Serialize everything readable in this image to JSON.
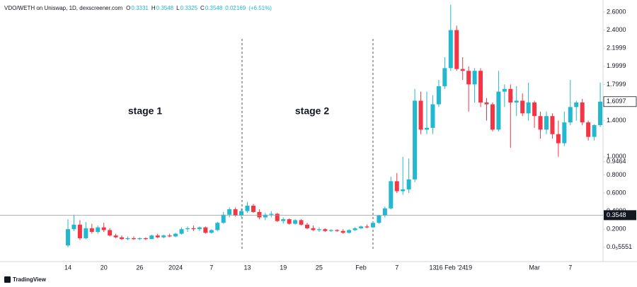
{
  "watermark": "TradingView",
  "chart_data": {
    "type": "candlestick",
    "title": "VDO/WETH on Uniswap, 1D, dexscreener.com",
    "readout": [
      {
        "name": "O",
        "value": 0.3331
      },
      {
        "name": "H",
        "value": 0.3548
      },
      {
        "name": "L",
        "value": 0.3325
      },
      {
        "name": "C",
        "value": 0.3548
      }
    ],
    "change": 0.02169,
    "change_pct": {
      "value": 6.51,
      "label": "(+6.51%)"
    },
    "annotations": [
      "stage 1",
      "stage 2"
    ],
    "up_color": "#22b8cf",
    "down_color": "#f23645",
    "categories": [
      "14",
      null,
      null,
      null,
      null,
      null,
      "20",
      null,
      null,
      null,
      null,
      null,
      "26",
      null,
      null,
      null,
      null,
      null,
      "2024",
      null,
      null,
      null,
      null,
      null,
      "7",
      null,
      null,
      null,
      null,
      null,
      "13",
      null,
      null,
      null,
      null,
      null,
      "19",
      null,
      null,
      null,
      null,
      null,
      "25",
      null,
      null,
      null,
      null,
      null,
      null,
      "Feb",
      null,
      null,
      null,
      null,
      null,
      "7",
      null,
      null,
      null,
      null,
      null,
      "13",
      null,
      null,
      "16 Feb '24",
      null,
      null,
      "19",
      null,
      null,
      null,
      null,
      null,
      null,
      null,
      null,
      null,
      null,
      "Mar",
      null,
      null,
      null,
      null,
      null,
      "7",
      null,
      null,
      null,
      null,
      null
    ],
    "series": [
      {
        "name": "VDO/WETH",
        "open": [
          0.02,
          0.2,
          0.25,
          0.1,
          0.21,
          0.17,
          0.22,
          0.19,
          0.13,
          0.11,
          0.09,
          0.1,
          0.09,
          0.1,
          0.09,
          0.13,
          0.11,
          0.13,
          0.12,
          0.15,
          0.2,
          0.21,
          0.2,
          0.22,
          0.16,
          0.19,
          0.27,
          0.36,
          0.42,
          0.35,
          0.4,
          0.46,
          0.39,
          0.33,
          0.36,
          0.37,
          0.29,
          0.31,
          0.26,
          0.3,
          0.25,
          0.21,
          0.19,
          0.2,
          0.18,
          0.19,
          0.18,
          0.16,
          0.19,
          0.21,
          0.23,
          0.22,
          0.27,
          0.35,
          0.43,
          0.73,
          0.62,
          0.64,
          0.75,
          1.62,
          1.3,
          1.32,
          1.58,
          1.78,
          1.98,
          2.4,
          1.97,
          1.95,
          1.8,
          1.95,
          1.6,
          1.58,
          1.3,
          1.72,
          1.75,
          1.6,
          1.62,
          1.48,
          1.6,
          1.45,
          1.3,
          1.45,
          1.25,
          1.15,
          1.38,
          1.55,
          1.6,
          1.38,
          1.22,
          1.35
        ],
        "high": [
          0.31,
          0.36,
          0.3,
          0.28,
          0.26,
          0.24,
          0.27,
          0.21,
          0.15,
          0.13,
          0.12,
          0.12,
          0.11,
          0.11,
          0.14,
          0.15,
          0.14,
          0.15,
          0.16,
          0.22,
          0.23,
          0.24,
          0.23,
          0.23,
          0.2,
          0.28,
          0.39,
          0.44,
          0.44,
          0.43,
          0.5,
          0.48,
          0.42,
          0.38,
          0.4,
          0.38,
          0.33,
          0.32,
          0.31,
          0.31,
          0.27,
          0.24,
          0.22,
          0.21,
          0.2,
          0.2,
          0.2,
          0.2,
          0.22,
          0.24,
          0.25,
          0.28,
          0.36,
          0.45,
          0.78,
          0.82,
          1.0,
          0.98,
          1.75,
          1.72,
          1.72,
          1.68,
          1.85,
          2.1,
          2.68,
          2.45,
          2.1,
          2.0,
          1.98,
          1.98,
          1.65,
          1.6,
          1.95,
          1.8,
          1.8,
          1.78,
          1.7,
          1.82,
          1.62,
          1.5,
          1.5,
          1.48,
          1.4,
          1.5,
          1.85,
          1.62,
          1.64,
          1.4,
          1.36,
          1.82
        ],
        "low": [
          0.0,
          0.18,
          0.08,
          0.09,
          0.15,
          0.15,
          0.17,
          0.12,
          0.1,
          0.08,
          0.08,
          0.08,
          0.08,
          0.08,
          0.09,
          0.1,
          0.1,
          0.11,
          0.11,
          0.14,
          0.17,
          0.18,
          0.18,
          0.15,
          0.15,
          0.18,
          0.26,
          0.33,
          0.34,
          0.33,
          0.38,
          0.38,
          0.31,
          0.3,
          0.33,
          0.28,
          0.26,
          0.25,
          0.25,
          0.24,
          0.2,
          0.18,
          0.17,
          0.17,
          0.17,
          0.17,
          0.15,
          0.15,
          0.18,
          0.2,
          0.21,
          0.21,
          0.26,
          0.33,
          0.42,
          0.6,
          0.58,
          0.6,
          0.72,
          1.25,
          1.25,
          1.25,
          1.55,
          1.75,
          1.95,
          1.95,
          1.85,
          1.5,
          1.6,
          1.55,
          1.4,
          1.28,
          1.28,
          1.55,
          1.1,
          1.45,
          1.45,
          1.4,
          1.32,
          1.2,
          1.25,
          1.2,
          1.0,
          1.12,
          1.35,
          1.4,
          1.35,
          1.18,
          1.18,
          1.33
        ],
        "close": [
          0.2,
          0.25,
          0.1,
          0.21,
          0.17,
          0.22,
          0.19,
          0.13,
          0.11,
          0.09,
          0.1,
          0.09,
          0.1,
          0.09,
          0.13,
          0.11,
          0.13,
          0.12,
          0.15,
          0.2,
          0.21,
          0.2,
          0.22,
          0.16,
          0.19,
          0.27,
          0.36,
          0.42,
          0.35,
          0.4,
          0.46,
          0.39,
          0.33,
          0.36,
          0.37,
          0.29,
          0.31,
          0.26,
          0.3,
          0.25,
          0.21,
          0.19,
          0.2,
          0.18,
          0.19,
          0.18,
          0.16,
          0.19,
          0.21,
          0.23,
          0.22,
          0.27,
          0.35,
          0.43,
          0.73,
          0.62,
          0.64,
          0.75,
          1.62,
          1.3,
          1.32,
          1.58,
          1.78,
          1.98,
          2.4,
          1.97,
          1.95,
          1.8,
          1.95,
          1.6,
          1.58,
          1.3,
          1.72,
          1.75,
          1.6,
          1.62,
          1.48,
          1.6,
          1.45,
          1.3,
          1.45,
          1.25,
          1.15,
          1.38,
          1.55,
          1.6,
          1.38,
          1.22,
          1.35,
          1.6097
        ]
      }
    ],
    "ylim": [
      -0.1578,
      2.7328
    ],
    "yticks": [
      {
        "value": 2.6,
        "label": "2.6000"
      },
      {
        "value": 2.4,
        "label": "2.4000"
      },
      2.1999,
      1.9999,
      1.7999,
      {
        "value": 1.4,
        "label": "1.4000"
      },
      {
        "value": 1.0,
        "label": "1.0000"
      },
      0.9464,
      {
        "value": 0.8,
        "label": "0.8000"
      },
      {
        "value": 0.6,
        "label": "0.6000"
      },
      {
        "value": 0.4,
        "label": "0.4000"
      },
      {
        "value": 0.2,
        "label": "0.2000"
      },
      {
        "value": 5.551e-06,
        "label": "0.0₅5551"
      }
    ],
    "last_price": 1.6097,
    "crosshair_price": 0.3548,
    "grid": false
  }
}
